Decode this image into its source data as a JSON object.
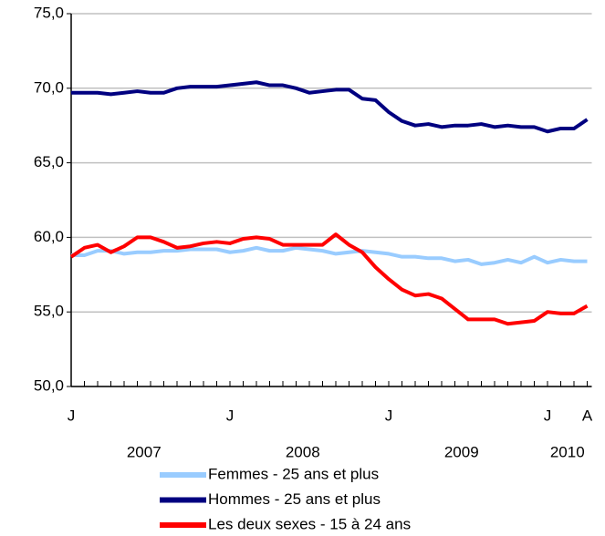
{
  "chart_data": {
    "type": "line",
    "categories": [
      "J",
      null,
      null,
      null,
      null,
      null,
      null,
      null,
      null,
      null,
      null,
      null,
      "J",
      null,
      null,
      null,
      null,
      null,
      null,
      null,
      null,
      null,
      null,
      null,
      "J",
      null,
      null,
      null,
      null,
      null,
      null,
      null,
      null,
      null,
      null,
      null,
      "J",
      null,
      null,
      "A"
    ],
    "x_group_labels": [
      "2007",
      "2008",
      "2009",
      "2010"
    ],
    "series": [
      {
        "name": "Femmes - 25 ans et plus",
        "color": "#99ccff",
        "values": [
          58.8,
          58.8,
          59.1,
          59.1,
          58.9,
          59.0,
          59.0,
          59.1,
          59.1,
          59.2,
          59.2,
          59.2,
          59.0,
          59.1,
          59.3,
          59.1,
          59.1,
          59.3,
          59.2,
          59.1,
          58.9,
          59.0,
          59.1,
          59.0,
          58.9,
          58.7,
          58.7,
          58.6,
          58.6,
          58.4,
          58.5,
          58.2,
          58.3,
          58.5,
          58.3,
          58.7,
          58.3,
          58.5,
          58.4,
          58.4
        ]
      },
      {
        "name": "Hommes - 25 ans et plus",
        "color": "#000080",
        "values": [
          69.7,
          69.7,
          69.7,
          69.6,
          69.7,
          69.8,
          69.7,
          69.7,
          70.0,
          70.1,
          70.1,
          70.1,
          70.2,
          70.3,
          70.4,
          70.2,
          70.2,
          70.0,
          69.7,
          69.8,
          69.9,
          69.9,
          69.3,
          69.2,
          68.4,
          67.8,
          67.5,
          67.6,
          67.4,
          67.5,
          67.5,
          67.6,
          67.4,
          67.5,
          67.4,
          67.4,
          67.1,
          67.3,
          67.3,
          67.9
        ]
      },
      {
        "name": "Les deux sexes - 15 à 24 ans",
        "color": "#ff0000",
        "values": [
          58.7,
          59.3,
          59.5,
          59.0,
          59.4,
          60.0,
          60.0,
          59.7,
          59.3,
          59.4,
          59.6,
          59.7,
          59.6,
          59.9,
          60.0,
          59.9,
          59.5,
          59.5,
          59.5,
          59.5,
          60.2,
          59.5,
          59.0,
          58.0,
          57.2,
          56.5,
          56.1,
          56.2,
          55.9,
          55.2,
          54.5,
          54.5,
          54.5,
          54.2,
          54.3,
          54.4,
          55.0,
          54.9,
          54.9,
          55.4
        ]
      }
    ],
    "ylim": [
      50,
      75
    ],
    "yticks": [
      {
        "value": 50,
        "label": "50,0"
      },
      {
        "value": 55,
        "label": "55,0"
      },
      {
        "value": 60,
        "label": "60,0"
      },
      {
        "value": 65,
        "label": "65,0"
      },
      {
        "value": 70,
        "label": "70,0"
      },
      {
        "value": 75,
        "label": "75,0"
      }
    ],
    "grid": true
  }
}
